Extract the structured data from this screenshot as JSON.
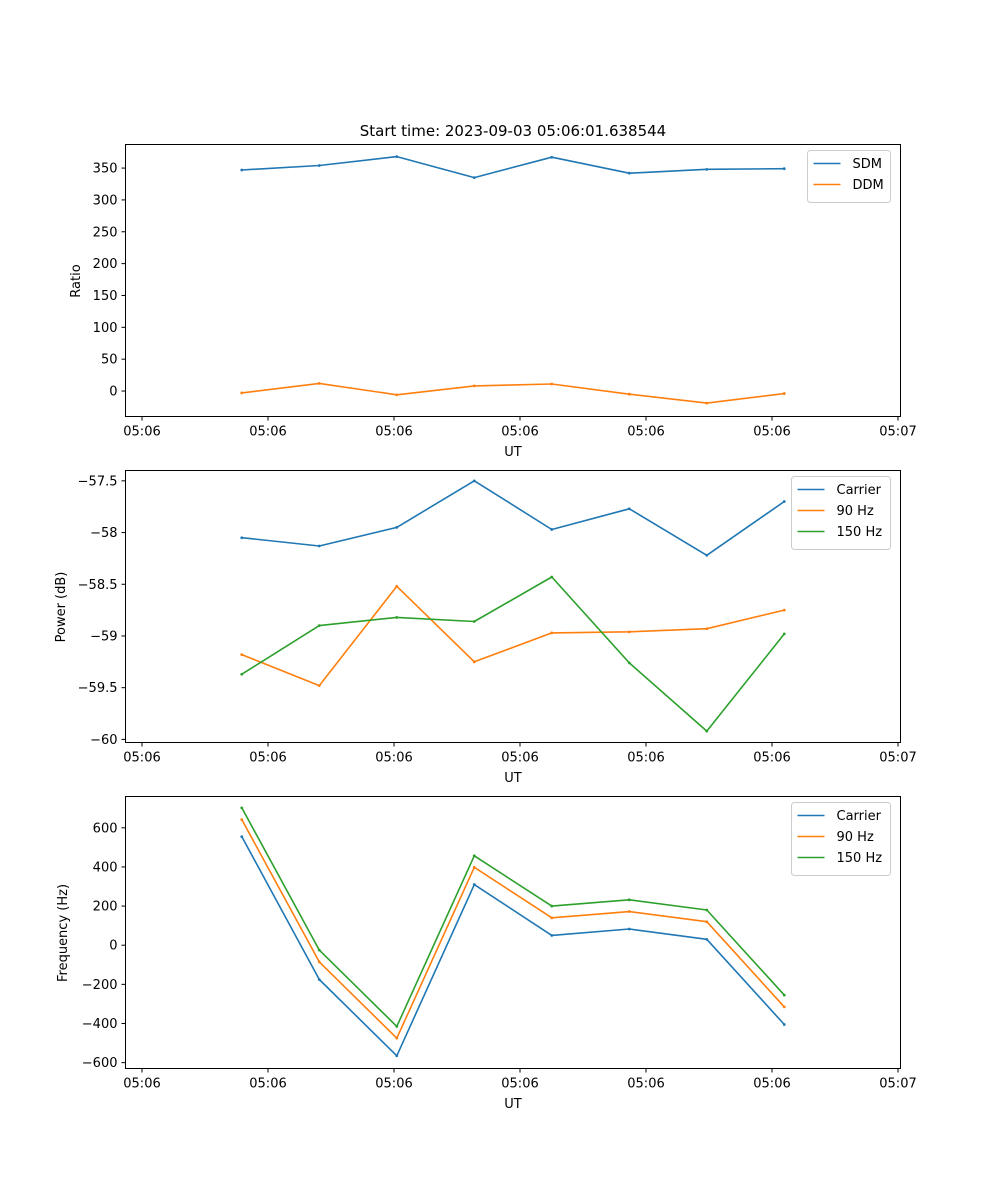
{
  "figure": {
    "title": "Start time: 2023-09-03 05:06:01.638544"
  },
  "chart_data": [
    {
      "type": "line",
      "title": "Start time: 2023-09-03 05:06:01.638544",
      "xlabel": "UT",
      "ylabel": "Ratio",
      "x_tick_labels": [
        "05:06",
        "05:06",
        "05:06",
        "05:06",
        "05:06",
        "05:06",
        "05:07"
      ],
      "xlim": [
        -0.5,
        9.5
      ],
      "x": [
        1,
        2,
        3,
        4,
        5,
        6,
        7,
        8
      ],
      "ylim": [
        -40,
        387
      ],
      "y_ticks": [
        0,
        50,
        100,
        150,
        200,
        250,
        300,
        350
      ],
      "legend": "top-right",
      "grid": false,
      "series": [
        {
          "name": "SDM",
          "color": "#1f77b4",
          "values": [
            347,
            354,
            368,
            335,
            367,
            342,
            348,
            349
          ]
        },
        {
          "name": "DDM",
          "color": "#ff7f0e",
          "values": [
            -3,
            12,
            -6,
            8,
            11,
            -5,
            -19,
            -4
          ]
        }
      ]
    },
    {
      "type": "line",
      "title": "",
      "xlabel": "UT",
      "ylabel": "Power (dB)",
      "x_tick_labels": [
        "05:06",
        "05:06",
        "05:06",
        "05:06",
        "05:06",
        "05:06",
        "05:07"
      ],
      "xlim": [
        -0.5,
        9.5
      ],
      "x": [
        1,
        2,
        3,
        4,
        5,
        6,
        7,
        8
      ],
      "ylim": [
        -60.03,
        -57.4
      ],
      "y_ticks": [
        -60.0,
        -59.5,
        -59.0,
        -58.5,
        -58.0,
        -57.5
      ],
      "legend": "top-right",
      "grid": false,
      "series": [
        {
          "name": "Carrier",
          "color": "#1f77b4",
          "values": [
            -58.05,
            -58.13,
            -57.95,
            -57.5,
            -57.97,
            -57.77,
            -58.22,
            -57.7
          ]
        },
        {
          "name": "90 Hz",
          "color": "#ff7f0e",
          "values": [
            -59.18,
            -59.48,
            -58.52,
            -59.25,
            -58.97,
            -58.96,
            -58.93,
            -58.75
          ]
        },
        {
          "name": "150 Hz",
          "color": "#2ca02c",
          "values": [
            -59.37,
            -58.9,
            -58.82,
            -58.86,
            -58.43,
            -59.26,
            -59.92,
            -58.98
          ]
        }
      ]
    },
    {
      "type": "line",
      "title": "",
      "xlabel": "UT",
      "ylabel": "Frequency (Hz)",
      "x_tick_labels": [
        "05:06",
        "05:06",
        "05:06",
        "05:06",
        "05:06",
        "05:06",
        "05:07"
      ],
      "xlim": [
        -0.5,
        9.5
      ],
      "x": [
        1,
        2,
        3,
        4,
        5,
        6,
        7,
        8
      ],
      "ylim": [
        -630,
        760
      ],
      "y_ticks": [
        -600,
        -400,
        -200,
        0,
        200,
        400,
        600
      ],
      "legend": "top-right",
      "grid": false,
      "series": [
        {
          "name": "Carrier",
          "color": "#1f77b4",
          "values": [
            555,
            -175,
            -565,
            310,
            50,
            83,
            30,
            -405
          ]
        },
        {
          "name": "90 Hz",
          "color": "#ff7f0e",
          "values": [
            642,
            -85,
            -475,
            398,
            140,
            172,
            120,
            -315
          ]
        },
        {
          "name": "150 Hz",
          "color": "#2ca02c",
          "values": [
            702,
            -25,
            -415,
            457,
            200,
            232,
            180,
            -255
          ]
        }
      ]
    }
  ]
}
